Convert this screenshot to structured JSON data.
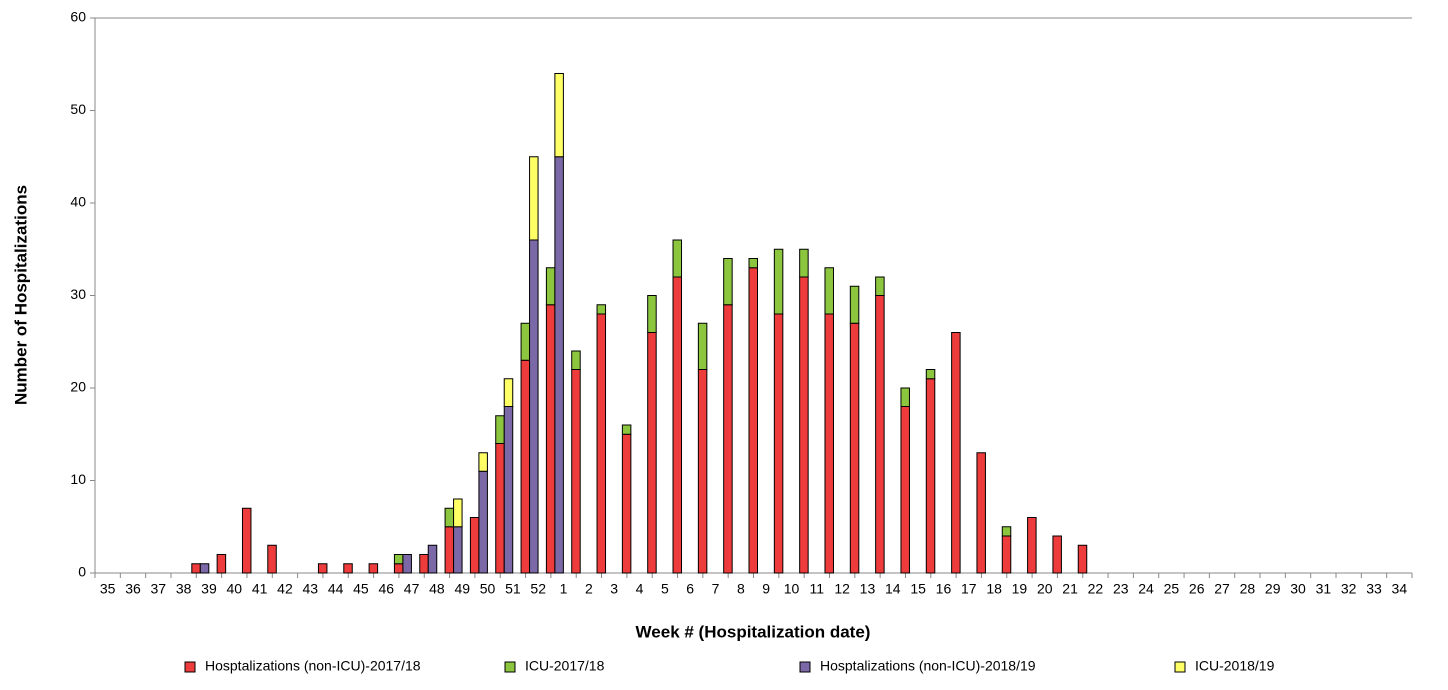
{
  "chart_data": {
    "type": "bar",
    "x_label": "Week # (Hospitalization date)",
    "y_label": "Number of Hospitalizations",
    "categories": [
      "35",
      "36",
      "37",
      "38",
      "39",
      "40",
      "41",
      "42",
      "43",
      "44",
      "45",
      "46",
      "47",
      "48",
      "49",
      "50",
      "51",
      "52",
      "1",
      "2",
      "3",
      "4",
      "5",
      "6",
      "7",
      "8",
      "9",
      "10",
      "11",
      "12",
      "13",
      "14",
      "15",
      "16",
      "17",
      "18",
      "19",
      "20",
      "21",
      "22",
      "23",
      "24",
      "25",
      "26",
      "27",
      "28",
      "29",
      "30",
      "31",
      "32",
      "33",
      "34"
    ],
    "series": [
      {
        "name": "Hosptalizations (non-ICU)-2017/18",
        "color": "#ee3b3b",
        "values": [
          null,
          null,
          null,
          null,
          1,
          2,
          7,
          3,
          null,
          1,
          1,
          1,
          1,
          2,
          5,
          6,
          14,
          23,
          29,
          22,
          28,
          15,
          26,
          32,
          22,
          29,
          33,
          28,
          32,
          28,
          27,
          30,
          18,
          21,
          26,
          13,
          4,
          6,
          4,
          3,
          null,
          null,
          null,
          null,
          null,
          null,
          null,
          null,
          null,
          null,
          null,
          null
        ]
      },
      {
        "name": "ICU-2017/18",
        "color": "#8cc63f",
        "values": [
          null,
          null,
          null,
          null,
          null,
          null,
          null,
          null,
          null,
          null,
          null,
          null,
          1,
          null,
          2,
          null,
          3,
          4,
          4,
          2,
          1,
          1,
          4,
          4,
          5,
          5,
          1,
          7,
          3,
          5,
          4,
          2,
          2,
          1,
          null,
          null,
          1,
          null,
          null,
          null,
          null,
          null,
          null,
          null,
          null,
          null,
          null,
          null,
          null,
          null,
          null,
          null
        ]
      },
      {
        "name": "Hosptalizations (non-ICU)-2018/19",
        "color": "#7b68a6",
        "values": [
          null,
          null,
          null,
          null,
          1,
          null,
          null,
          null,
          null,
          null,
          null,
          null,
          2,
          3,
          5,
          11,
          18,
          36,
          45,
          null,
          null,
          null,
          null,
          null,
          null,
          null,
          null,
          null,
          null,
          null,
          null,
          null,
          null,
          null,
          null,
          null,
          null,
          null,
          null,
          null,
          null,
          null,
          null,
          null,
          null,
          null,
          null,
          null,
          null,
          null,
          null,
          null
        ]
      },
      {
        "name": "ICU-2018/19",
        "color": "#ffff66",
        "values": [
          null,
          null,
          null,
          null,
          null,
          null,
          null,
          null,
          null,
          null,
          null,
          null,
          null,
          null,
          3,
          2,
          3,
          9,
          9,
          null,
          null,
          null,
          null,
          null,
          null,
          null,
          null,
          null,
          null,
          null,
          null,
          null,
          null,
          null,
          null,
          null,
          null,
          null,
          null,
          null,
          null,
          null,
          null,
          null,
          null,
          null,
          null,
          null,
          null,
          null,
          null,
          null
        ]
      }
    ],
    "ylim": [
      0,
      60
    ],
    "yticks": [
      0,
      10,
      20,
      30,
      40,
      50,
      60
    ],
    "grid": false,
    "legend": "bottom"
  }
}
